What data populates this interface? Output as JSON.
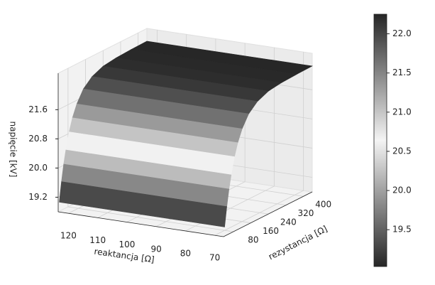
{
  "chart_data": {
    "type": "surface",
    "xlabel": "reaktancja [Ω]",
    "ylabel": "rezystancja [Ω]",
    "zlabel": "napięcie [kV]",
    "xlim": [
      67,
      123.5
    ],
    "xticks": [
      120,
      110,
      100,
      90,
      80,
      70
    ],
    "ylim": [
      35,
      440
    ],
    "yticks": [
      80,
      160,
      240,
      320,
      400
    ],
    "zlim": [
      18.8,
      22.6
    ],
    "zticks": [
      19.2,
      {
        "value": 20,
        "label": "20.0"
      },
      20.8,
      21.6
    ],
    "grid": true,
    "y": [
      40,
      50,
      60,
      70,
      85,
      100,
      120,
      150,
      190,
      240,
      300,
      370,
      440
    ],
    "z": [
      19.05,
      19.58,
      20.03,
      20.39,
      20.84,
      21.18,
      21.5,
      21.82,
      22.04,
      22.17,
      22.22,
      22.24,
      22.25
    ],
    "clim": [
      19.03,
      22.25
    ],
    "colormap": [
      "#262626",
      "#8c8c8c",
      "#f4f4f4",
      "#8c8c8c",
      "#262626"
    ],
    "cbticks": [
      19.5,
      {
        "value": 20,
        "label": "20.0"
      },
      20.5,
      {
        "value": 21,
        "label": "21.0"
      },
      21.5,
      {
        "value": 22,
        "label": "22.0"
      }
    ]
  }
}
